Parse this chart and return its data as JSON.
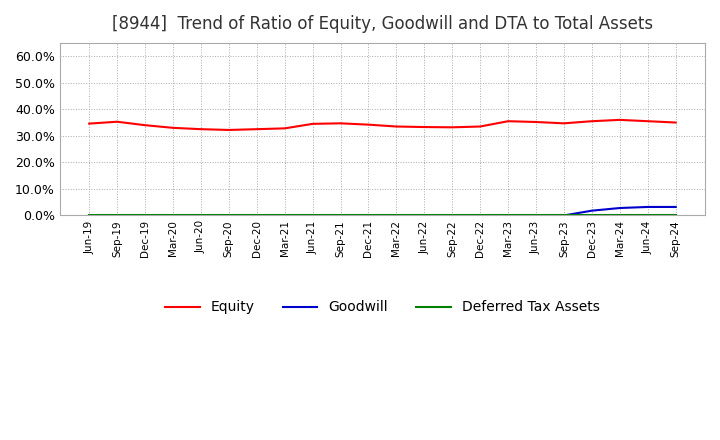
{
  "title": "[8944]  Trend of Ratio of Equity, Goodwill and DTA to Total Assets",
  "title_fontsize": 12,
  "ylim": [
    0.0,
    0.65
  ],
  "yticks": [
    0.0,
    0.1,
    0.2,
    0.3,
    0.4,
    0.5,
    0.6
  ],
  "x_labels": [
    "Jun-19",
    "Sep-19",
    "Dec-19",
    "Mar-20",
    "Jun-20",
    "Sep-20",
    "Dec-20",
    "Mar-21",
    "Jun-21",
    "Sep-21",
    "Dec-21",
    "Mar-22",
    "Jun-22",
    "Sep-22",
    "Dec-22",
    "Mar-23",
    "Jun-23",
    "Sep-23",
    "Dec-23",
    "Mar-24",
    "Jun-24",
    "Sep-24"
  ],
  "equity": [
    0.346,
    0.353,
    0.34,
    0.33,
    0.325,
    0.322,
    0.325,
    0.328,
    0.345,
    0.347,
    0.342,
    0.335,
    0.333,
    0.332,
    0.335,
    0.355,
    0.352,
    0.347,
    0.355,
    0.36,
    0.355,
    0.35
  ],
  "goodwill": [
    0.0,
    0.0,
    0.0,
    0.0,
    0.0,
    0.0,
    0.0,
    0.0,
    0.0,
    0.0,
    0.0,
    0.0,
    0.0,
    0.0,
    0.0,
    0.0,
    0.0,
    0.0,
    0.018,
    0.028,
    0.032,
    0.032
  ],
  "dta": [
    0.0,
    0.0,
    0.0,
    0.0,
    0.0,
    0.0,
    0.0,
    0.0,
    0.0,
    0.0,
    0.0,
    0.0,
    0.0,
    0.0,
    0.0,
    0.0,
    0.0,
    0.0,
    0.0,
    0.0,
    0.0,
    0.0
  ],
  "equity_color": "#FF0000",
  "goodwill_color": "#0000CC",
  "dta_color": "#008000",
  "bg_color": "#FFFFFF",
  "grid_color": "#AAAAAA",
  "legend_labels": [
    "Equity",
    "Goodwill",
    "Deferred Tax Assets"
  ]
}
